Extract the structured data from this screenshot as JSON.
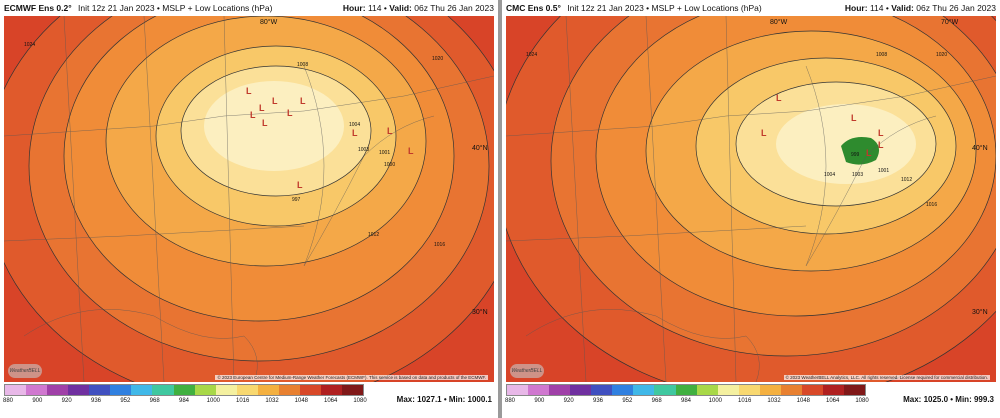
{
  "scale_ticks": [
    "880",
    "900",
    "920",
    "936",
    "952",
    "968",
    "984",
    "1000",
    "1016",
    "1032",
    "1048",
    "1064",
    "1080"
  ],
  "scale_colors": [
    "#e8b8e8",
    "#d078d0",
    "#a040a8",
    "#7030a0",
    "#4050c0",
    "#3080e0",
    "#40b8e8",
    "#40c8a0",
    "#40b040",
    "#a8d848",
    "#f4f0a0",
    "#f8d870",
    "#f4b040",
    "#e88030",
    "#d84828",
    "#b02020",
    "#801818"
  ],
  "left": {
    "title": "ECMWF Ens 0.2°",
    "subtitle": "Init 12z 21 Jan 2023 • MSLP + Low Locations (hPa)",
    "hour_label": "Hour:",
    "hour": "114",
    "valid_label": "Valid:",
    "valid": "06z Thu 26 Jan 2023",
    "credit": "© 2023 European Centre for Medium-Range Weather Forecasts (ECMWF). This service is based on data and products of the ECMWF.",
    "max_label": "Max:",
    "max": "1027.1",
    "min_label": "Min:",
    "min": "1000.1",
    "logo": "WeatherBELL",
    "lon_label": "80°W",
    "lat_40": "40°N",
    "lat_30": "30°N",
    "iso": [
      "1008",
      "1012",
      "1016",
      "1020",
      "1004",
      "1000",
      "1003",
      "1001",
      "997",
      "1024"
    ]
  },
  "right": {
    "title": "CMC Ens 0.5°",
    "subtitle": "Init 12z 21 Jan 2023 • MSLP + Low Locations (hPa)",
    "hour_label": "Hour:",
    "hour": "114",
    "valid_label": "Valid:",
    "valid": "06z Thu 26 Jan 2023",
    "credit": "© 2023 WeatherBELL Analytics, LLC. All rights reserved. License required for commercial distribution.",
    "max_label": "Max:",
    "max": "1025.0",
    "min_label": "Min:",
    "min": "999.3",
    "logo": "WeatherBELL",
    "lon_80": "80°W",
    "lon_70": "70°W",
    "lat_40": "40°N",
    "lat_30": "30°N",
    "iso": [
      "1008",
      "1012",
      "1016",
      "1020",
      "1004",
      "1003",
      "1001",
      "999",
      "1024"
    ]
  }
}
